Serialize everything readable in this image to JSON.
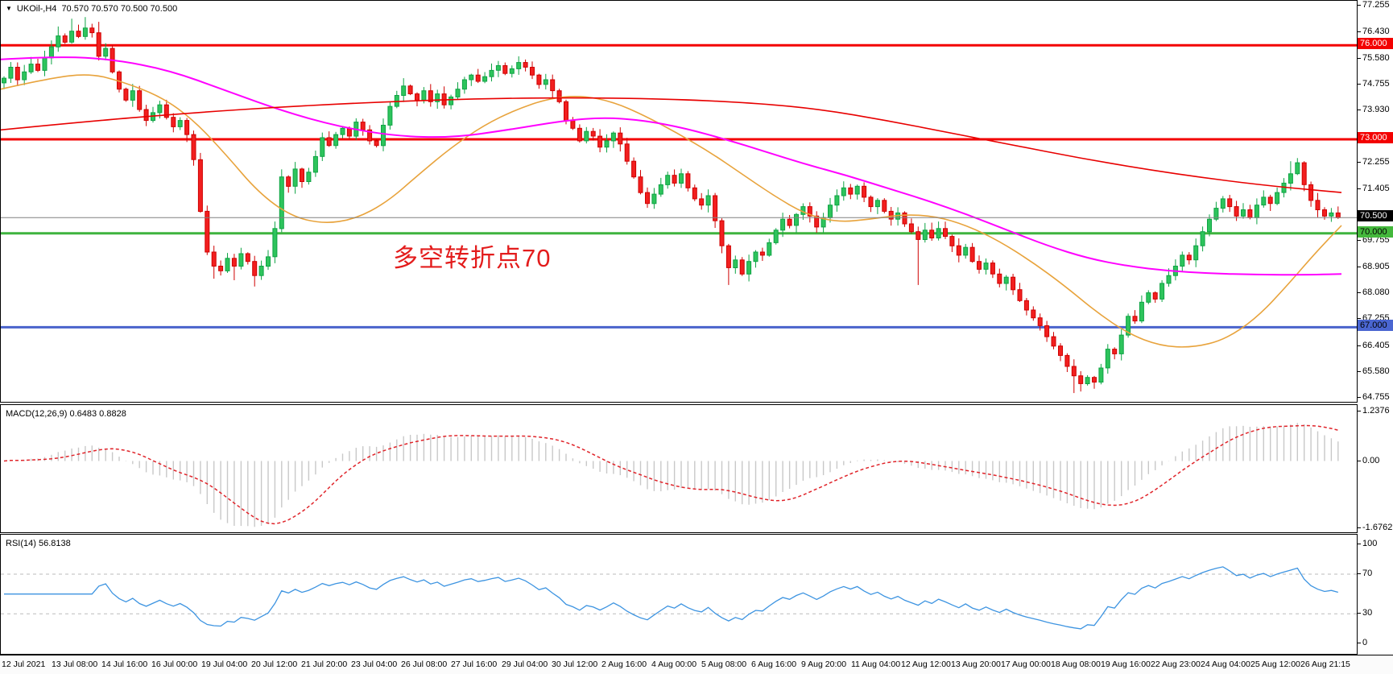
{
  "window": {
    "symbol": "UKOil-,H4",
    "ohlc_readout": "70.570 70.570 70.500 70.500",
    "dropdown_arrow": "▼"
  },
  "annotation": {
    "text": "多空转折点70",
    "color": "#e31c1c"
  },
  "price_axis": {
    "plain_ticks": [
      "77.255",
      "76.430",
      "75.580",
      "74.755",
      "73.930",
      "72.255",
      "71.405",
      "69.755",
      "68.905",
      "68.080",
      "67.255",
      "66.405",
      "65.580",
      "64.755"
    ],
    "badges": [
      {
        "text": "76.000",
        "price": 76.0,
        "bg": "#f30000",
        "fg": "#ffffff"
      },
      {
        "text": "73.000",
        "price": 73.0,
        "bg": "#f30000",
        "fg": "#ffffff"
      },
      {
        "text": "70.500",
        "price": 70.5,
        "bg": "#000000",
        "fg": "#ffffff"
      },
      {
        "text": "70.000",
        "price": 70.0,
        "bg": "#44b83c",
        "fg": "#000000"
      },
      {
        "text": "67.000",
        "price": 67.0,
        "bg": "#4a66d1",
        "fg": "#000000"
      }
    ],
    "macd_ticks": [
      {
        "text": "1.2376",
        "value": 1.2376
      },
      {
        "text": "0.00",
        "value": 0.0
      },
      {
        "text": "-1.6762",
        "value": -1.6762
      }
    ],
    "rsi_ticks": [
      {
        "text": "100",
        "value": 100
      },
      {
        "text": "70",
        "value": 70
      },
      {
        "text": "30",
        "value": 30
      },
      {
        "text": "0",
        "value": 0
      }
    ]
  },
  "time_axis": {
    "labels": [
      "12 Jul 2021",
      "13 Jul 08:00",
      "14 Jul 16:00",
      "16 Jul 00:00",
      "19 Jul 04:00",
      "20 Jul 12:00",
      "21 Jul 20:00",
      "23 Jul 04:00",
      "26 Jul 08:00",
      "27 Jul 16:00",
      "29 Jul 04:00",
      "30 Jul 12:00",
      "2 Aug 16:00",
      "4 Aug 00:00",
      "5 Aug 08:00",
      "6 Aug 16:00",
      "9 Aug 20:00",
      "11 Aug 04:00",
      "12 Aug 12:00",
      "13 Aug 20:00",
      "17 Aug 00:00",
      "18 Aug 08:00",
      "19 Aug 16:00",
      "22 Aug 23:00",
      "24 Aug 04:00",
      "25 Aug 12:00",
      "26 Aug 21:15"
    ]
  },
  "chart_data": [
    {
      "type": "candlestick",
      "title": "UKOil- H4",
      "ylim": [
        64.62,
        77.42
      ],
      "closes": [
        74.95,
        75.3,
        74.9,
        75.15,
        75.4,
        75.2,
        75.6,
        75.95,
        76.3,
        76.1,
        76.45,
        76.28,
        76.55,
        76.4,
        75.65,
        75.9,
        75.15,
        74.6,
        74.25,
        74.55,
        73.95,
        73.6,
        73.85,
        74.1,
        73.7,
        73.4,
        73.6,
        73.15,
        72.35,
        70.7,
        69.4,
        68.95,
        68.8,
        69.2,
        68.95,
        69.35,
        69.1,
        68.65,
        68.95,
        69.25,
        70.15,
        71.8,
        71.5,
        72.05,
        71.65,
        71.95,
        72.45,
        73.05,
        72.8,
        73.15,
        73.35,
        73.1,
        73.55,
        73.3,
        72.95,
        72.8,
        73.45,
        74.05,
        74.4,
        74.7,
        74.45,
        74.25,
        74.55,
        74.2,
        74.45,
        74.1,
        74.35,
        74.6,
        74.9,
        75.05,
        74.85,
        75.0,
        75.2,
        75.35,
        75.1,
        75.25,
        75.45,
        75.3,
        75.05,
        74.75,
        74.9,
        74.55,
        74.2,
        73.6,
        73.35,
        72.95,
        73.25,
        73.1,
        72.75,
        72.95,
        73.2,
        72.85,
        72.3,
        71.8,
        71.3,
        70.95,
        71.25,
        71.55,
        71.85,
        71.6,
        71.9,
        71.45,
        71.1,
        70.9,
        71.2,
        70.4,
        69.6,
        68.9,
        69.15,
        68.7,
        69.1,
        69.4,
        69.3,
        69.7,
        70.1,
        70.45,
        70.25,
        70.6,
        70.85,
        70.55,
        70.2,
        70.5,
        70.9,
        71.2,
        71.45,
        71.25,
        71.5,
        71.15,
        70.85,
        71.05,
        70.7,
        70.45,
        70.65,
        70.3,
        70.05,
        69.8,
        70.1,
        69.85,
        70.15,
        69.9,
        69.6,
        69.3,
        69.55,
        69.1,
        68.85,
        69.05,
        68.7,
        68.4,
        68.6,
        68.2,
        67.85,
        67.55,
        67.3,
        67.05,
        66.7,
        66.4,
        66.1,
        65.75,
        65.45,
        65.2,
        65.4,
        65.25,
        65.7,
        66.3,
        66.15,
        66.75,
        67.35,
        67.2,
        67.8,
        68.1,
        67.9,
        68.4,
        68.65,
        68.95,
        69.3,
        69.15,
        69.6,
        70.05,
        70.45,
        70.8,
        71.1,
        70.85,
        70.55,
        70.75,
        70.5,
        70.9,
        71.15,
        70.95,
        71.3,
        71.6,
        71.9,
        72.25,
        71.55,
        71.05,
        70.75,
        70.55,
        70.65,
        70.5
      ],
      "last_bar_ohlc": {
        "open": 70.57,
        "high": 70.57,
        "low": 70.5,
        "close": 70.5
      },
      "wick_overrides": {
        "8": {
          "high": 76.6
        },
        "10": {
          "high": 76.85
        },
        "12": {
          "high": 76.9
        },
        "14": {
          "high": 76.75
        },
        "31": {
          "low": 68.55
        },
        "34": {
          "low": 68.5
        },
        "37": {
          "low": 68.3
        },
        "59": {
          "high": 74.95
        },
        "76": {
          "high": 75.65
        },
        "107": {
          "low": 68.35
        },
        "135": {
          "low": 68.35
        },
        "158": {
          "low": 64.9
        },
        "159": {
          "low": 64.95
        },
        "190": {
          "high": 72.3
        },
        "191": {
          "high": 72.4
        }
      },
      "candle_colors": {
        "up_fill": "#2ec45c",
        "up_stroke": "#0ea344",
        "down_fill": "#f21f1f",
        "down_stroke": "#cf0000"
      },
      "levels": [
        {
          "value": 76.0,
          "color": "#f30000",
          "width": 3
        },
        {
          "value": 73.0,
          "color": "#f30000",
          "width": 3
        },
        {
          "value": 70.0,
          "color": "#3eb33e",
          "width": 3
        },
        {
          "value": 67.0,
          "color": "#4a63cc",
          "width": 3
        }
      ],
      "current_price": {
        "value": 70.5,
        "color": "#808080",
        "width": 1
      },
      "moving_averages": [
        {
          "name": "ma-fast-orange",
          "color": "#e8a33c",
          "width": 1.6,
          "points": [
            [
              0,
              74.6
            ],
            [
              60,
              74.95
            ],
            [
              110,
              75.1
            ],
            [
              150,
              74.85
            ],
            [
              200,
              74.35
            ],
            [
              240,
              73.6
            ],
            [
              280,
              72.5
            ],
            [
              320,
              71.3
            ],
            [
              360,
              70.55
            ],
            [
              400,
              70.3
            ],
            [
              440,
              70.45
            ],
            [
              480,
              71.0
            ],
            [
              520,
              71.9
            ],
            [
              560,
              72.75
            ],
            [
              600,
              73.45
            ],
            [
              640,
              73.95
            ],
            [
              680,
              74.3
            ],
            [
              720,
              74.4
            ],
            [
              760,
              74.2
            ],
            [
              800,
              73.75
            ],
            [
              840,
              73.2
            ],
            [
              880,
              72.6
            ],
            [
              920,
              71.9
            ],
            [
              960,
              71.2
            ],
            [
              1000,
              70.6
            ],
            [
              1040,
              70.35
            ],
            [
              1080,
              70.45
            ],
            [
              1120,
              70.6
            ],
            [
              1160,
              70.55
            ],
            [
              1200,
              70.25
            ],
            [
              1240,
              69.75
            ],
            [
              1280,
              69.1
            ],
            [
              1320,
              68.35
            ],
            [
              1360,
              67.5
            ],
            [
              1400,
              66.8
            ],
            [
              1440,
              66.4
            ],
            [
              1480,
              66.35
            ],
            [
              1520,
              66.6
            ],
            [
              1560,
              67.3
            ],
            [
              1600,
              68.4
            ],
            [
              1630,
              69.3
            ],
            [
              1665,
              70.25
            ]
          ]
        },
        {
          "name": "ma-mid-magenta",
          "color": "#ff00ff",
          "width": 2,
          "points": [
            [
              0,
              75.55
            ],
            [
              70,
              75.65
            ],
            [
              140,
              75.55
            ],
            [
              210,
              75.2
            ],
            [
              280,
              74.55
            ],
            [
              350,
              73.9
            ],
            [
              420,
              73.4
            ],
            [
              490,
              73.1
            ],
            [
              560,
              73.05
            ],
            [
              630,
              73.3
            ],
            [
              700,
              73.6
            ],
            [
              750,
              73.7
            ],
            [
              800,
              73.6
            ],
            [
              850,
              73.35
            ],
            [
              900,
              73.0
            ],
            [
              950,
              72.6
            ],
            [
              1000,
              72.2
            ],
            [
              1050,
              71.85
            ],
            [
              1100,
              71.45
            ],
            [
              1150,
              71.05
            ],
            [
              1200,
              70.6
            ],
            [
              1250,
              70.1
            ],
            [
              1300,
              69.6
            ],
            [
              1350,
              69.2
            ],
            [
              1400,
              68.95
            ],
            [
              1450,
              68.8
            ],
            [
              1500,
              68.72
            ],
            [
              1560,
              68.68
            ],
            [
              1620,
              68.67
            ],
            [
              1665,
              68.7
            ]
          ]
        },
        {
          "name": "ma-slow-red",
          "color": "#e80000",
          "width": 1.6,
          "points": [
            [
              0,
              73.3
            ],
            [
              120,
              73.6
            ],
            [
              240,
              73.85
            ],
            [
              360,
              74.05
            ],
            [
              480,
              74.2
            ],
            [
              600,
              74.3
            ],
            [
              720,
              74.33
            ],
            [
              840,
              74.28
            ],
            [
              940,
              74.15
            ],
            [
              1020,
              73.95
            ],
            [
              1100,
              73.6
            ],
            [
              1180,
              73.2
            ],
            [
              1260,
              72.8
            ],
            [
              1340,
              72.4
            ],
            [
              1420,
              72.05
            ],
            [
              1500,
              71.75
            ],
            [
              1580,
              71.5
            ],
            [
              1665,
              71.3
            ]
          ]
        }
      ]
    },
    {
      "type": "macd",
      "label": "MACD(12,26,9) 0.6483 0.8828",
      "params": [
        12,
        26,
        9
      ],
      "macd_value": 0.6483,
      "signal_value": 0.8828,
      "ylim": [
        -1.776,
        1.396
      ],
      "histogram_color": "#c8c8c8",
      "signal_color": "#e0242a"
    },
    {
      "type": "rsi",
      "label": "RSI(14) 56.8138",
      "period": 14,
      "value": 56.8138,
      "level_lines": [
        70,
        30
      ],
      "line_color": "#3d94e1",
      "level_color": "#bbbbbb"
    }
  ]
}
